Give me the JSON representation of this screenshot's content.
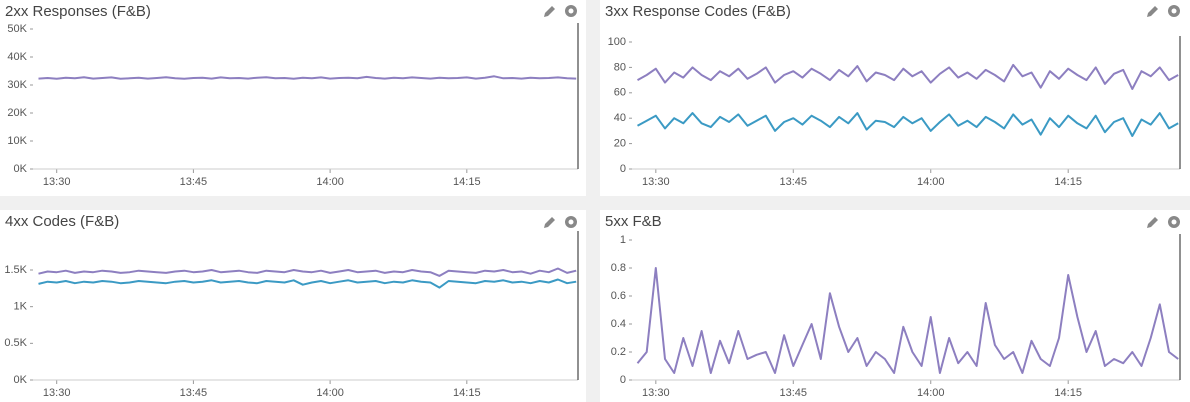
{
  "chart_data": [
    {
      "type": "line",
      "title": "2xx Responses (F&B)",
      "x": [
        808,
        809,
        810,
        811,
        812,
        813,
        814,
        815,
        816,
        817,
        818,
        819,
        820,
        821,
        822,
        823,
        824,
        825,
        826,
        827,
        828,
        829,
        830,
        831,
        832,
        833,
        834,
        835,
        836,
        837,
        838,
        839,
        840,
        841,
        842,
        843,
        844,
        845,
        846,
        847,
        848,
        849,
        850,
        851,
        852,
        853,
        854,
        855,
        856,
        857,
        858,
        859,
        860,
        861,
        862,
        863,
        864,
        865,
        866,
        867
      ],
      "series": [
        {
          "color": "#8d7fc0",
          "values": [
            32300,
            32500,
            32200,
            32600,
            32400,
            32800,
            32300,
            32500,
            32700,
            32200,
            32400,
            32600,
            32300,
            32500,
            32800,
            32400,
            32200,
            32500,
            32600,
            32300,
            32700,
            32400,
            32500,
            32300,
            32600,
            32800,
            32400,
            32500,
            32200,
            32600,
            32400,
            32700,
            32300,
            32500,
            32600,
            32400,
            32900,
            32500,
            32300,
            32600,
            32400,
            32700,
            32500,
            32300,
            32600,
            32400,
            32500,
            32700,
            32300,
            32600,
            33100,
            32400,
            32500,
            32300,
            32600,
            32400,
            32500,
            32700,
            32400,
            32300
          ]
        }
      ],
      "xlim": [
        807.4,
        867.2
      ],
      "xticks": [
        {
          "value": 810,
          "label": "13:30"
        },
        {
          "value": 825,
          "label": "13:45"
        },
        {
          "value": 840,
          "label": "14:00"
        },
        {
          "value": 855,
          "label": "14:15"
        }
      ],
      "ylim": [
        0,
        50000
      ],
      "yticks": [
        {
          "value": 0,
          "label": "0K"
        },
        {
          "value": 10000,
          "label": "10K"
        },
        {
          "value": 20000,
          "label": "20K"
        },
        {
          "value": 30000,
          "label": "30K"
        },
        {
          "value": 40000,
          "label": "40K"
        },
        {
          "value": 50000,
          "label": "50K"
        }
      ]
    },
    {
      "type": "line",
      "title": "3xx Response Codes (F&B)",
      "x": [
        808,
        809,
        810,
        811,
        812,
        813,
        814,
        815,
        816,
        817,
        818,
        819,
        820,
        821,
        822,
        823,
        824,
        825,
        826,
        827,
        828,
        829,
        830,
        831,
        832,
        833,
        834,
        835,
        836,
        837,
        838,
        839,
        840,
        841,
        842,
        843,
        844,
        845,
        846,
        847,
        848,
        849,
        850,
        851,
        852,
        853,
        854,
        855,
        856,
        857,
        858,
        859,
        860,
        861,
        862,
        863,
        864,
        865,
        866,
        867
      ],
      "series": [
        {
          "color": "#8d7fc0",
          "values": [
            70,
            74,
            79,
            68,
            76,
            72,
            80,
            74,
            70,
            77,
            73,
            79,
            71,
            75,
            80,
            68,
            74,
            77,
            72,
            79,
            75,
            70,
            78,
            73,
            81,
            69,
            76,
            74,
            70,
            79,
            73,
            77,
            68,
            75,
            80,
            72,
            76,
            71,
            78,
            74,
            69,
            82,
            73,
            76,
            64,
            77,
            71,
            79,
            74,
            70,
            80,
            67,
            75,
            78,
            63,
            77,
            73,
            80,
            70,
            74
          ]
        },
        {
          "color": "#3b9ac4",
          "values": [
            34,
            38,
            42,
            32,
            40,
            36,
            44,
            36,
            33,
            41,
            37,
            43,
            34,
            38,
            42,
            30,
            37,
            40,
            35,
            42,
            38,
            33,
            41,
            36,
            44,
            31,
            38,
            37,
            33,
            41,
            36,
            40,
            30,
            37,
            43,
            34,
            38,
            33,
            41,
            37,
            32,
            43,
            35,
            39,
            27,
            40,
            33,
            42,
            36,
            32,
            42,
            29,
            37,
            40,
            26,
            39,
            35,
            44,
            32,
            36
          ]
        }
      ],
      "xlim": [
        807.4,
        867.2
      ],
      "xticks": [
        {
          "value": 810,
          "label": "13:30"
        },
        {
          "value": 825,
          "label": "13:45"
        },
        {
          "value": 840,
          "label": "14:00"
        },
        {
          "value": 855,
          "label": "14:15"
        }
      ],
      "ylim": [
        0,
        100
      ],
      "yticks": [
        0,
        20,
        40,
        60,
        80,
        100
      ]
    },
    {
      "type": "line",
      "title": "4xx Codes (F&B)",
      "x": [
        808,
        809,
        810,
        811,
        812,
        813,
        814,
        815,
        816,
        817,
        818,
        819,
        820,
        821,
        822,
        823,
        824,
        825,
        826,
        827,
        828,
        829,
        830,
        831,
        832,
        833,
        834,
        835,
        836,
        837,
        838,
        839,
        840,
        841,
        842,
        843,
        844,
        845,
        846,
        847,
        848,
        849,
        850,
        851,
        852,
        853,
        854,
        855,
        856,
        857,
        858,
        859,
        860,
        861,
        862,
        863,
        864,
        865,
        866,
        867
      ],
      "series": [
        {
          "color": "#8d7fc0",
          "values": [
            1450,
            1480,
            1470,
            1490,
            1460,
            1480,
            1470,
            1490,
            1480,
            1460,
            1470,
            1490,
            1480,
            1470,
            1460,
            1480,
            1490,
            1470,
            1480,
            1500,
            1470,
            1480,
            1490,
            1470,
            1460,
            1490,
            1480,
            1470,
            1500,
            1480,
            1470,
            1490,
            1460,
            1480,
            1500,
            1470,
            1480,
            1490,
            1460,
            1480,
            1470,
            1500,
            1480,
            1470,
            1420,
            1490,
            1480,
            1470,
            1460,
            1490,
            1480,
            1500,
            1470,
            1480,
            1450,
            1490,
            1470,
            1520,
            1460,
            1490
          ]
        },
        {
          "color": "#3b9ac4",
          "values": [
            1310,
            1340,
            1330,
            1350,
            1320,
            1340,
            1330,
            1350,
            1340,
            1320,
            1330,
            1350,
            1340,
            1330,
            1320,
            1340,
            1350,
            1330,
            1340,
            1360,
            1330,
            1340,
            1350,
            1330,
            1320,
            1350,
            1340,
            1330,
            1360,
            1300,
            1330,
            1350,
            1320,
            1340,
            1360,
            1330,
            1340,
            1350,
            1320,
            1340,
            1330,
            1360,
            1340,
            1330,
            1260,
            1350,
            1340,
            1330,
            1320,
            1350,
            1340,
            1360,
            1330,
            1340,
            1320,
            1350,
            1330,
            1370,
            1320,
            1340
          ]
        }
      ],
      "xlim": [
        807.4,
        867.2
      ],
      "xticks": [
        {
          "value": 810,
          "label": "13:30"
        },
        {
          "value": 825,
          "label": "13:45"
        },
        {
          "value": 840,
          "label": "14:00"
        },
        {
          "value": 855,
          "label": "14:15"
        }
      ],
      "ylim": [
        0,
        1950
      ],
      "yticks": [
        {
          "value": 0,
          "label": "0K"
        },
        {
          "value": 500,
          "label": "0.5K"
        },
        {
          "value": 1000,
          "label": "1K"
        },
        {
          "value": 1500,
          "label": "1.5K"
        }
      ]
    },
    {
      "type": "line",
      "title": "5xx F&B",
      "x": [
        808,
        809,
        810,
        811,
        812,
        813,
        814,
        815,
        816,
        817,
        818,
        819,
        820,
        821,
        822,
        823,
        824,
        825,
        826,
        827,
        828,
        829,
        830,
        831,
        832,
        833,
        834,
        835,
        836,
        837,
        838,
        839,
        840,
        841,
        842,
        843,
        844,
        845,
        846,
        847,
        848,
        849,
        850,
        851,
        852,
        853,
        854,
        855,
        856,
        857,
        858,
        859,
        860,
        861,
        862,
        863,
        864,
        865,
        866,
        867
      ],
      "series": [
        {
          "color": "#8d7fc0",
          "values": [
            0.12,
            0.2,
            0.8,
            0.15,
            0.05,
            0.3,
            0.1,
            0.35,
            0.05,
            0.28,
            0.12,
            0.35,
            0.15,
            0.18,
            0.2,
            0.05,
            0.32,
            0.1,
            0.25,
            0.4,
            0.15,
            0.62,
            0.38,
            0.2,
            0.3,
            0.1,
            0.2,
            0.15,
            0.05,
            0.38,
            0.2,
            0.1,
            0.45,
            0.05,
            0.3,
            0.12,
            0.2,
            0.1,
            0.55,
            0.25,
            0.15,
            0.2,
            0.05,
            0.28,
            0.15,
            0.1,
            0.3,
            0.75,
            0.45,
            0.2,
            0.35,
            0.1,
            0.15,
            0.12,
            0.2,
            0.1,
            0.3,
            0.54,
            0.2,
            0.15
          ]
        }
      ],
      "xlim": [
        807.4,
        867.2
      ],
      "xticks": [
        {
          "value": 810,
          "label": "13:30"
        },
        {
          "value": 825,
          "label": "13:45"
        },
        {
          "value": 840,
          "label": "14:00"
        },
        {
          "value": 855,
          "label": "14:15"
        }
      ],
      "ylim": [
        0,
        1
      ],
      "yticks": [
        0,
        0.2,
        0.4,
        0.6,
        0.8,
        1
      ]
    }
  ]
}
